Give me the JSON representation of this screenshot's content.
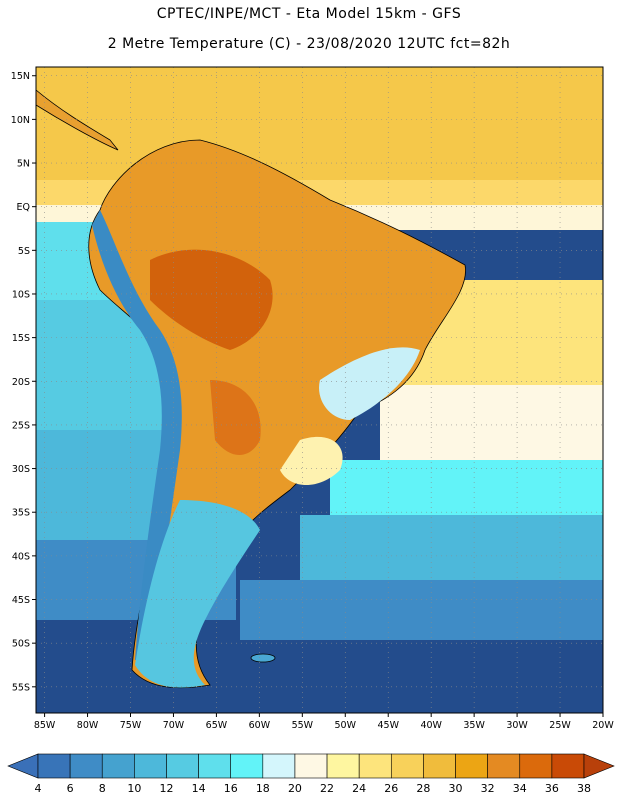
{
  "header": {
    "line1": "CPTEC/INPE/MCT -  Eta Model 15km - GFS",
    "line2": "2 Metre Temperature (C) - 23/08/2020 12UTC fct=82h"
  },
  "map": {
    "lon_range": [
      -86,
      -20
    ],
    "lat_range": [
      -58,
      16
    ],
    "lat_ticks": [
      {
        "label": "15N",
        "value": 15
      },
      {
        "label": "10N",
        "value": 10
      },
      {
        "label": "5N",
        "value": 5
      },
      {
        "label": "EQ",
        "value": 0
      },
      {
        "label": "5S",
        "value": -5
      },
      {
        "label": "10S",
        "value": -10
      },
      {
        "label": "15S",
        "value": -15
      },
      {
        "label": "20S",
        "value": -20
      },
      {
        "label": "25S",
        "value": -25
      },
      {
        "label": "30S",
        "value": -30
      },
      {
        "label": "35S",
        "value": -35
      },
      {
        "label": "40S",
        "value": -40
      },
      {
        "label": "45S",
        "value": -45
      },
      {
        "label": "50S",
        "value": -50
      },
      {
        "label": "55S",
        "value": -55
      }
    ],
    "lon_ticks": [
      {
        "label": "85W",
        "value": -85
      },
      {
        "label": "80W",
        "value": -80
      },
      {
        "label": "75W",
        "value": -75
      },
      {
        "label": "70W",
        "value": -70
      },
      {
        "label": "65W",
        "value": -65
      },
      {
        "label": "60W",
        "value": -60
      },
      {
        "label": "55W",
        "value": -55
      },
      {
        "label": "50W",
        "value": -50
      },
      {
        "label": "45W",
        "value": -45
      },
      {
        "label": "40W",
        "value": -40
      },
      {
        "label": "35W",
        "value": -35
      },
      {
        "label": "30W",
        "value": -30
      },
      {
        "label": "25W",
        "value": -25
      },
      {
        "label": "20W",
        "value": -20
      }
    ]
  },
  "colorbar": {
    "labels": [
      "4",
      "6",
      "8",
      "10",
      "12",
      "14",
      "16",
      "18",
      "20",
      "22",
      "24",
      "26",
      "28",
      "30",
      "32",
      "34",
      "36",
      "38"
    ],
    "colors": [
      "#3874b8",
      "#3f8cc6",
      "#45a2cf",
      "#4db8da",
      "#56cbe2",
      "#5fdfec",
      "#62f3f8",
      "#d4f6fc",
      "#fef8e4",
      "#fef6a0",
      "#fde47c",
      "#f8d15a",
      "#f0bc3c",
      "#eca514",
      "#e48a22",
      "#db6a0c",
      "#c94a06"
    ],
    "low_color": "#3a70b8",
    "high_color": "#b8400a"
  }
}
